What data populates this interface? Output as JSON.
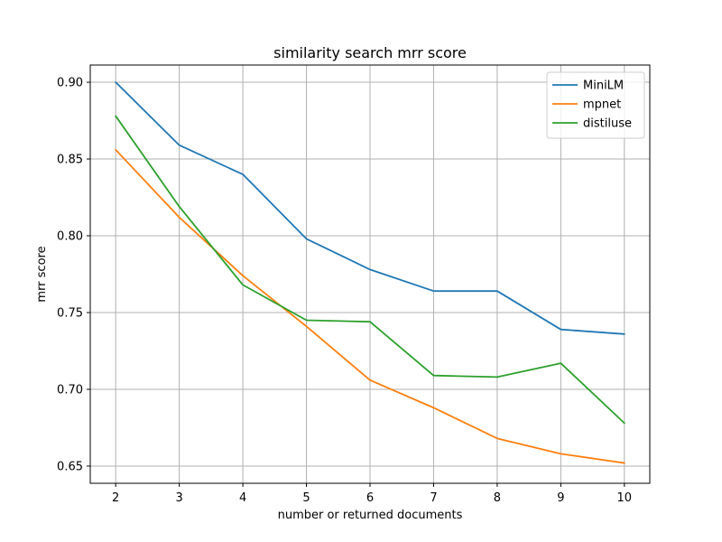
{
  "chart_data": {
    "type": "line",
    "title": "similarity search mrr score",
    "xlabel": "number or returned documents",
    "ylabel": "mrr score",
    "x": [
      2,
      3,
      4,
      5,
      6,
      7,
      8,
      9,
      10
    ],
    "xticks": [
      "2",
      "3",
      "4",
      "5",
      "6",
      "7",
      "8",
      "9",
      "10"
    ],
    "yticks": [
      "0.65",
      "0.70",
      "0.75",
      "0.80",
      "0.85",
      "0.90"
    ],
    "ytick_values": [
      0.65,
      0.7,
      0.75,
      0.8,
      0.85,
      0.9
    ],
    "xlim": [
      1.6,
      10.4
    ],
    "ylim": [
      0.6388,
      0.9112
    ],
    "grid": true,
    "legend_position": "top-right",
    "series": [
      {
        "name": "MiniLM",
        "color": "#1f77b4",
        "values": [
          0.9,
          0.859,
          0.84,
          0.798,
          0.778,
          0.764,
          0.764,
          0.739,
          0.736
        ]
      },
      {
        "name": "mpnet",
        "color": "#ff7f0e",
        "values": [
          0.856,
          0.812,
          0.774,
          0.741,
          0.706,
          0.688,
          0.668,
          0.658,
          0.652
        ]
      },
      {
        "name": "distiluse",
        "color": "#2ca02c",
        "values": [
          0.878,
          0.819,
          0.768,
          0.745,
          0.744,
          0.709,
          0.708,
          0.717,
          0.678
        ]
      }
    ]
  }
}
